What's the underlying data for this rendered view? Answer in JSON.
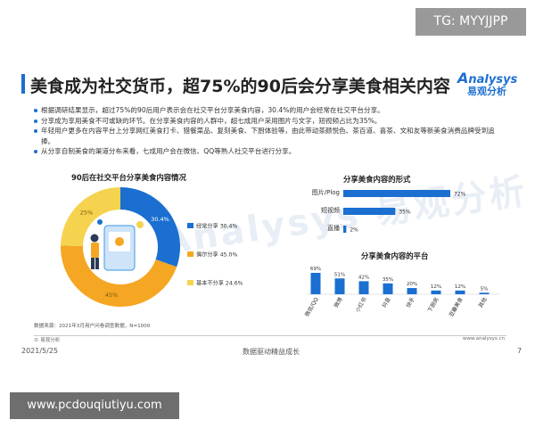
{
  "overlay": {
    "tg_label": "TG: MYYJJPP",
    "site_url": "www.pcdouqiutiyu.com"
  },
  "slide": {
    "title": "美食成为社交货币，超75%的90后会分享美食相关内容",
    "logo_text_en": "nalysys",
    "logo_text_cn": "易观分析",
    "watermark": "Analysys 易观分析",
    "bullets": [
      "根据调研结果显示，超过75%的90后用户表示会在社交平台分享美食内容，30.4%的用户会经常在社交平台分享。",
      "分享成为享用美食不可或缺的环节。在分享美食内容的人群中，超七成用户采用图片与文字，短视频占比为35%。",
      "年轻用户更多在内容平台上分享网红美食打卡、猎餐菜品、复刻美食、下厨体验等，由此带动茶颜悦色、茶百道、喜茶、文和友等新美食消费品牌受到追捧。",
      "从分享自制美食的渠道分布来看，七成用户会在微信、QQ等熟人社交平台进行分享。"
    ],
    "source": "数据来源：2021年3月用户问卷调查数据，N=1000",
    "footer_brand": "© 易观分析",
    "footer_url": "www.analysys.cn"
  },
  "page": {
    "date": "2021/5/25",
    "center": "数据驱动精益成长",
    "number": "7"
  },
  "colors": {
    "blue": "#1a6fd0",
    "light_blue": "#5aa8ea",
    "orange": "#f5a623",
    "yellow": "#f6d34f"
  },
  "chart_data": [
    {
      "type": "pie",
      "title": "90后在社交平台分享美食内容情况",
      "labels": [
        "经常分享",
        "偶尔分享",
        "基本不分享"
      ],
      "values": [
        30.4,
        45.0,
        24.6
      ],
      "data_labels": [
        "30.4%",
        "45%",
        "25%"
      ],
      "legend_labels": [
        "经常分享 30.4%",
        "偶尔分享 45.0%",
        "基本不分享 24.6%"
      ],
      "colors": [
        "#1a6fd0",
        "#f5a623",
        "#f6d34f"
      ]
    },
    {
      "type": "bar",
      "orientation": "horizontal",
      "title": "分享美食内容的形式",
      "categories": [
        "图片/Plog",
        "短视频",
        "直播"
      ],
      "values": [
        72,
        35,
        2
      ],
      "data_labels": [
        "72%",
        "35%",
        "2%"
      ],
      "color": "#1a6fd0"
    },
    {
      "type": "bar",
      "title": "分享美食内容的平台",
      "categories": [
        "微信/QQ",
        "微博",
        "小红书",
        "抖音",
        "快手",
        "下厨房",
        "豆瓣美食",
        "其他"
      ],
      "values": [
        69,
        51,
        42,
        35,
        20,
        12,
        12,
        5
      ],
      "data_labels": [
        "69%",
        "51%",
        "42%",
        "35%",
        "20%",
        "12%",
        "12%",
        "5%"
      ],
      "color": "#1a6fd0"
    }
  ]
}
